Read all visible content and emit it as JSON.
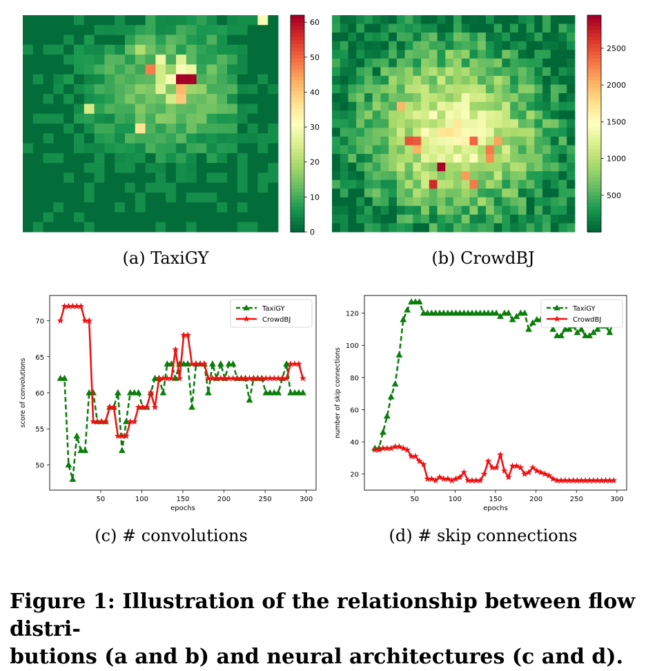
{
  "caption": {
    "line1": "Figure 1: Illustration of the relationship between flow distri-",
    "line2": "butions (a and b) and neural architectures (c and d)."
  },
  "colors": {
    "taxi": "#0a7d0a",
    "crowd": "#ee1111",
    "heat_low": "#006837",
    "heat_mid": "#ffffbf",
    "heat_high": "#a50026"
  },
  "chart_data": [
    {
      "type": "heatmap",
      "subcaption": "(a)  TaxiGY",
      "rows": 22,
      "cols": 25,
      "colorbar": {
        "min": 0,
        "max": 62,
        "ticks": [
          0,
          10,
          20,
          30,
          40,
          50,
          60
        ]
      },
      "hotspots": [
        {
          "row": 6,
          "col": 15,
          "value": 62
        },
        {
          "row": 6,
          "col": 16,
          "value": 62
        },
        {
          "row": 5,
          "col": 12,
          "value": 48
        },
        {
          "row": 7,
          "col": 15,
          "value": 42
        },
        {
          "row": 8,
          "col": 15,
          "value": 40
        },
        {
          "row": 11,
          "col": 11,
          "value": 36
        },
        {
          "row": 0,
          "col": 23,
          "value": 30
        },
        {
          "row": 4,
          "col": 13,
          "value": 28
        },
        {
          "row": 5,
          "col": 15,
          "value": 30
        },
        {
          "row": 6,
          "col": 14,
          "value": 30
        },
        {
          "row": 5,
          "col": 16,
          "value": 28
        },
        {
          "row": 4,
          "col": 15,
          "value": 26
        },
        {
          "row": 7,
          "col": 13,
          "value": 26
        },
        {
          "row": 8,
          "col": 14,
          "value": 24
        },
        {
          "row": 6,
          "col": 13,
          "value": 24
        },
        {
          "row": 5,
          "col": 13,
          "value": 24
        },
        {
          "row": 9,
          "col": 6,
          "value": 24
        },
        {
          "row": 3,
          "col": 11,
          "value": 20
        }
      ]
    },
    {
      "type": "heatmap",
      "subcaption": "(b)  CrowdBJ",
      "rows": 25,
      "cols": 30,
      "colorbar": {
        "min": 0,
        "max": 2950,
        "ticks": [
          500,
          1000,
          1500,
          2000,
          2500
        ]
      },
      "hotspots": [
        {
          "row": 17,
          "col": 13,
          "value": 2950
        },
        {
          "row": 19,
          "col": 12,
          "value": 2700
        },
        {
          "row": 14,
          "col": 9,
          "value": 2500
        },
        {
          "row": 14,
          "col": 10,
          "value": 2450
        },
        {
          "row": 14,
          "col": 17,
          "value": 2400
        },
        {
          "row": 15,
          "col": 19,
          "value": 2300
        },
        {
          "row": 19,
          "col": 17,
          "value": 2300
        },
        {
          "row": 16,
          "col": 19,
          "value": 2200
        },
        {
          "row": 18,
          "col": 16,
          "value": 2150
        },
        {
          "row": 14,
          "col": 20,
          "value": 2100
        },
        {
          "row": 15,
          "col": 10,
          "value": 2050
        },
        {
          "row": 10,
          "col": 8,
          "value": 2000
        }
      ]
    },
    {
      "type": "line",
      "subcaption": "(c)  # convolutions",
      "xlabel": "epochs",
      "ylabel": "score of convolutions",
      "xlim": [
        -12,
        312
      ],
      "ylim": [
        46.5,
        73.5
      ],
      "xticks": [
        50,
        100,
        150,
        200,
        250,
        300
      ],
      "yticks": [
        50,
        55,
        60,
        65,
        70
      ],
      "legend": "top-right",
      "x": [
        1,
        6,
        11,
        16,
        21,
        26,
        31,
        36,
        41,
        46,
        51,
        56,
        61,
        66,
        71,
        76,
        81,
        86,
        91,
        96,
        101,
        106,
        111,
        116,
        121,
        126,
        131,
        136,
        141,
        146,
        151,
        156,
        161,
        166,
        171,
        176,
        181,
        186,
        191,
        196,
        201,
        206,
        211,
        216,
        221,
        226,
        231,
        236,
        241,
        246,
        251,
        256,
        261,
        266,
        271,
        276,
        281,
        286,
        291,
        296
      ],
      "series": [
        {
          "name": "TaxiGY",
          "values": [
            62,
            62,
            50,
            48,
            54,
            52,
            52,
            60,
            60,
            56,
            56,
            56,
            58,
            58,
            60,
            52,
            56,
            60,
            60,
            60,
            58,
            58,
            60,
            62,
            62,
            60,
            64,
            64,
            62,
            64,
            64,
            64,
            58,
            64,
            64,
            64,
            60,
            64,
            62,
            64,
            62,
            64,
            64,
            62,
            62,
            62,
            59,
            62,
            62,
            62,
            60,
            60,
            60,
            60,
            62,
            64,
            60,
            60,
            60,
            60
          ]
        },
        {
          "name": "CrowdBJ",
          "values": [
            70,
            72,
            72,
            72,
            72,
            72,
            70,
            70,
            56,
            56,
            56,
            56,
            58,
            58,
            54,
            54,
            54,
            56,
            56,
            58,
            58,
            58,
            60,
            58,
            62,
            62,
            62,
            62,
            66,
            62,
            68,
            68,
            64,
            64,
            64,
            64,
            62,
            62,
            62,
            62,
            62,
            62,
            62,
            62,
            62,
            62,
            62,
            62,
            62,
            62,
            62,
            62,
            62,
            62,
            62,
            62,
            64,
            64,
            64,
            62
          ]
        }
      ]
    },
    {
      "type": "line",
      "subcaption": "(d)  # skip connections",
      "xlabel": "epochs",
      "ylabel": "number of skip connections",
      "xlim": [
        -12,
        312
      ],
      "ylim": [
        10,
        131
      ],
      "xticks": [
        50,
        100,
        150,
        200,
        250,
        300
      ],
      "yticks": [
        20,
        40,
        60,
        80,
        100,
        120
      ],
      "legend": "top-right",
      "x": [
        1,
        6,
        11,
        16,
        21,
        26,
        31,
        36,
        41,
        46,
        51,
        56,
        61,
        66,
        71,
        76,
        81,
        86,
        91,
        96,
        101,
        106,
        111,
        116,
        121,
        126,
        131,
        136,
        141,
        146,
        151,
        156,
        161,
        166,
        171,
        176,
        181,
        186,
        191,
        196,
        201,
        206,
        211,
        216,
        221,
        226,
        231,
        236,
        241,
        246,
        251,
        256,
        261,
        266,
        271,
        276,
        281,
        286,
        291,
        296
      ],
      "series": [
        {
          "name": "TaxiGY",
          "values": [
            36,
            36,
            46,
            56,
            68,
            76,
            94,
            116,
            122,
            127,
            127,
            127,
            120,
            120,
            120,
            120,
            120,
            120,
            120,
            120,
            120,
            120,
            120,
            120,
            120,
            120,
            120,
            120,
            120,
            120,
            120,
            118,
            120,
            120,
            116,
            118,
            120,
            120,
            110,
            114,
            116,
            116,
            116,
            116,
            110,
            106,
            106,
            110,
            110,
            112,
            108,
            110,
            106,
            106,
            108,
            110,
            112,
            112,
            108,
            116
          ]
        },
        {
          "name": "CrowdBJ",
          "values": [
            35,
            35,
            36,
            36,
            36,
            37,
            37,
            36,
            35,
            31,
            31,
            28,
            26,
            17,
            17,
            16,
            18,
            17,
            17,
            16,
            17,
            18,
            21,
            16,
            16,
            16,
            16,
            20,
            28,
            24,
            24,
            32,
            22,
            18,
            25,
            25,
            24,
            20,
            21,
            24,
            22,
            21,
            20,
            19,
            17,
            16,
            16,
            16,
            16,
            16,
            16,
            16,
            16,
            16,
            16,
            16,
            16,
            16,
            16,
            16
          ]
        }
      ]
    }
  ]
}
